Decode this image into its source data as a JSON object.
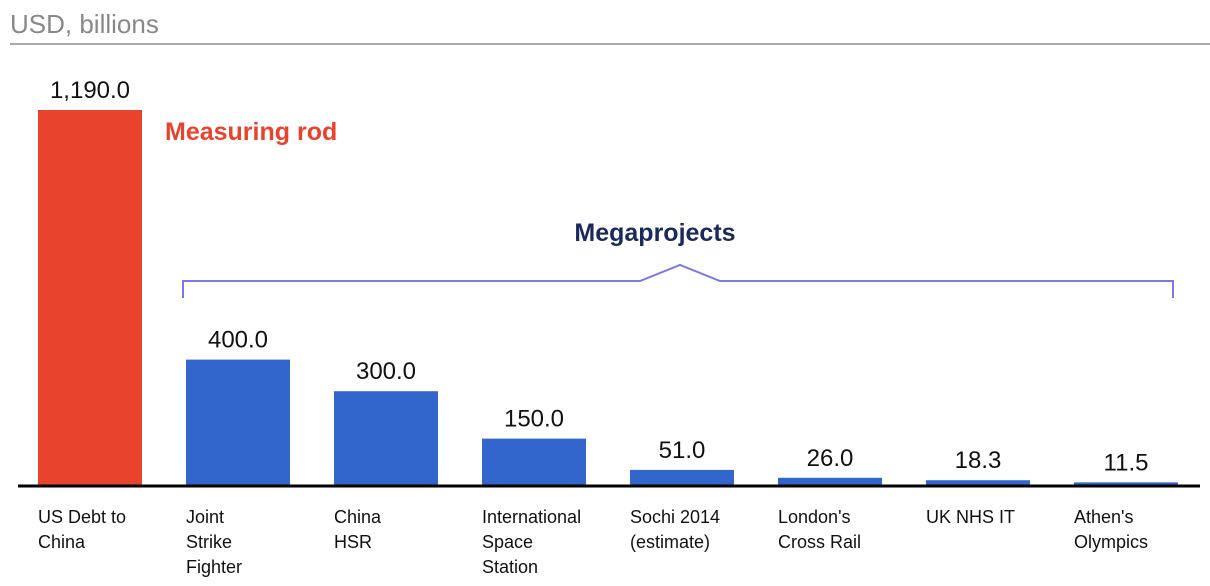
{
  "chart_data": {
    "type": "bar",
    "subtitle": "USD, billions",
    "categories": [
      "US Debt to\nChina",
      "Joint\nStrike\nFighter",
      "China\nHSR",
      "International\nSpace\nStation",
      "Sochi 2014\n(estimate)",
      "London's\nCross Rail",
      "UK NHS IT",
      "Athen's\nOlympics"
    ],
    "values": [
      1190,
      400,
      300,
      150,
      51,
      26,
      18.3,
      11.5
    ],
    "value_labels": [
      "1,190.0",
      "400.0",
      "300.0",
      "150.0",
      "51.0",
      "26.0",
      "18.3",
      "11.5"
    ],
    "colors": [
      "#e8432d",
      "#3366cc",
      "#3366cc",
      "#3366cc",
      "#3366cc",
      "#3366cc",
      "#3366cc",
      "#3366cc"
    ],
    "ylim": [
      0,
      1190
    ],
    "annotations": [
      "Measuring rod",
      "Megaprojects"
    ]
  }
}
